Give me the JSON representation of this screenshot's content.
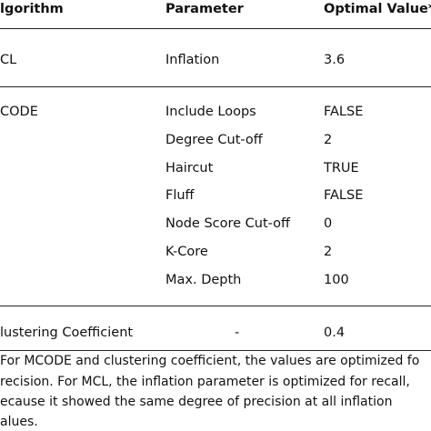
{
  "table": {
    "header": [
      "lgorithm",
      "Parameter",
      "Optimal Value*"
    ],
    "groups": [
      {
        "algorithm": "CL",
        "rows": [
          [
            "Inflation",
            "3.6"
          ]
        ]
      },
      {
        "algorithm": "CODE",
        "rows": [
          [
            "Include Loops",
            "FALSE"
          ],
          [
            "Degree Cut-off",
            "2"
          ],
          [
            "Haircut",
            "TRUE"
          ],
          [
            "Fluff",
            "FALSE"
          ],
          [
            "Node Score Cut-off",
            "0"
          ],
          [
            "K-Core",
            "2"
          ],
          [
            "Max. Depth",
            "100"
          ]
        ]
      },
      {
        "algorithm": "lustering Coefficient",
        "rows": [
          [
            "-",
            "0.4"
          ]
        ]
      }
    ]
  },
  "footnote": [
    "For MCODE and clustering coefficient, the values are optimized fo",
    "recision. For MCL, the inflation parameter is optimized for recall,",
    "ecause it showed the same degree of precision at all inflation",
    "alues."
  ]
}
